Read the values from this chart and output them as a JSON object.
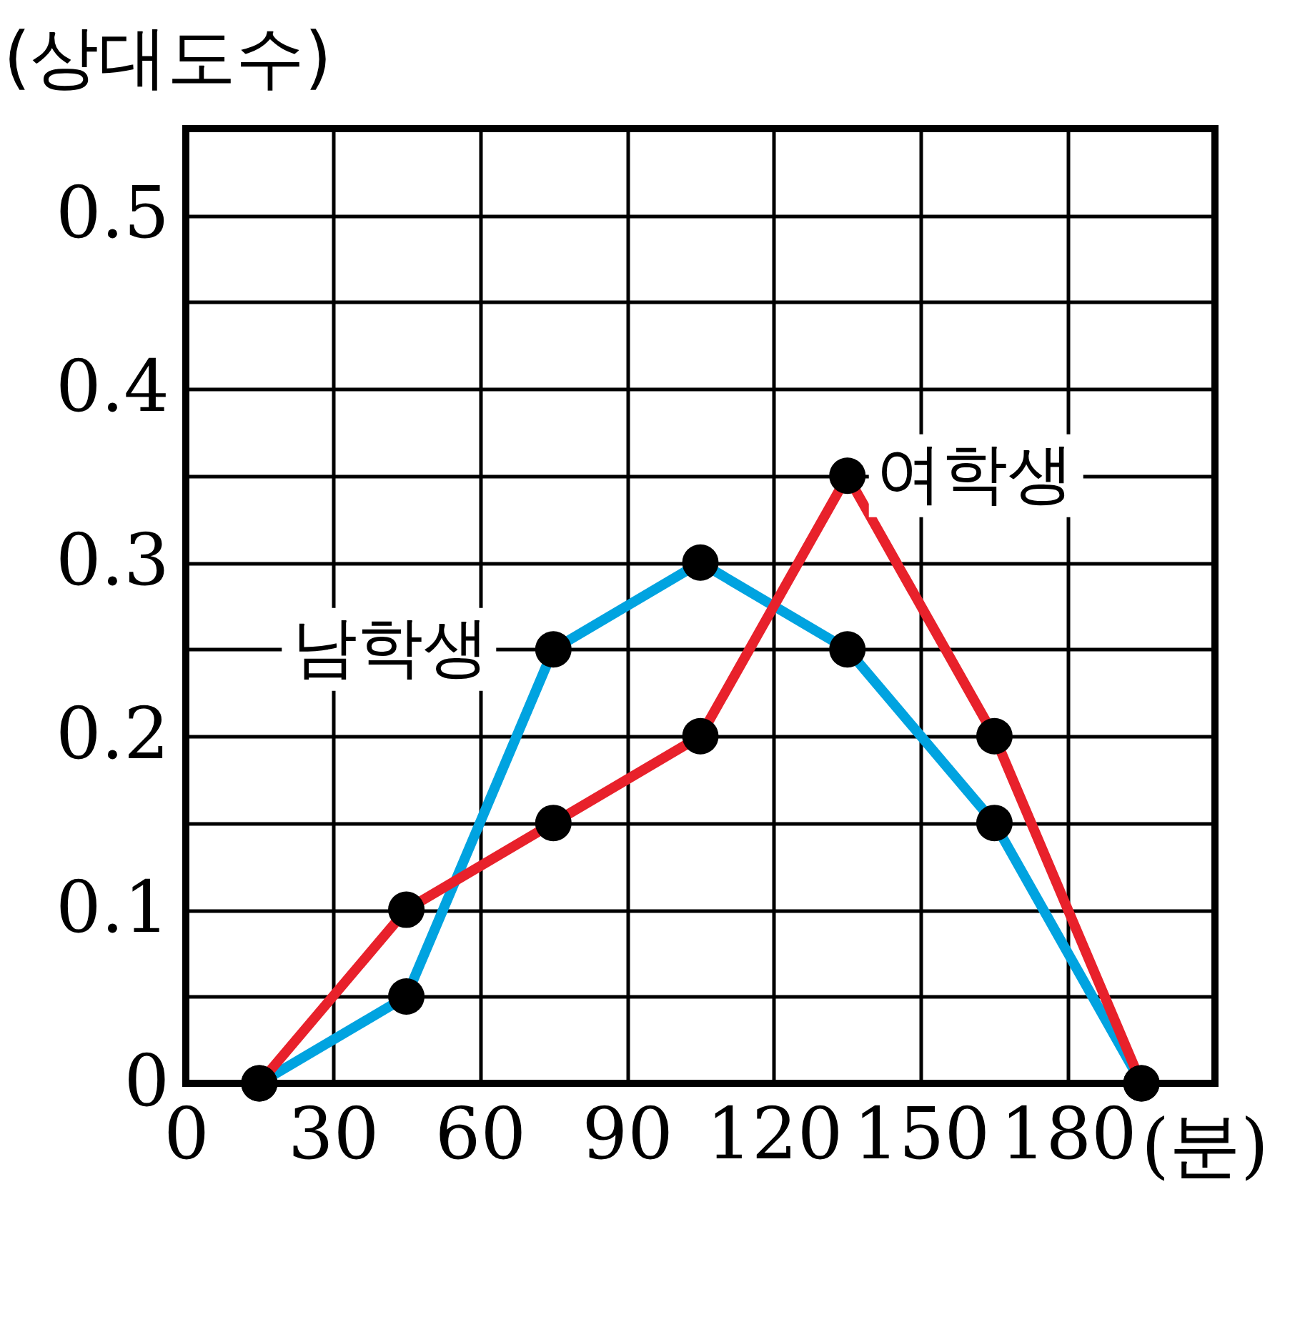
{
  "chart_data": {
    "type": "line",
    "ylabel": "(상대도수)",
    "xlabel": "(분)",
    "x": [
      15,
      45,
      75,
      105,
      135,
      165,
      195
    ],
    "series": [
      {
        "name": "남학생",
        "color": "#00a3e0",
        "values": [
          0,
          0.05,
          0.25,
          0.3,
          0.25,
          0.15,
          0
        ]
      },
      {
        "name": "여학생",
        "color": "#e8212b",
        "values": [
          0,
          0.1,
          0.15,
          0.2,
          0.35,
          0.2,
          0
        ]
      }
    ],
    "xlim": [
      0,
      210
    ],
    "ylim": [
      0,
      0.55
    ],
    "xticks": [
      0,
      30,
      60,
      90,
      120,
      150,
      180
    ],
    "yticks": [
      0,
      {
        "value": 0.05,
        "label": null
      },
      0.1,
      {
        "value": 0.15,
        "label": null
      },
      0.2,
      {
        "value": 0.25,
        "label": null
      },
      0.3,
      {
        "value": 0.35,
        "label": null
      },
      0.4,
      {
        "value": 0.45,
        "label": null
      },
      0.5,
      {
        "value": 0.55,
        "label": null
      }
    ],
    "grid": true,
    "marker": "circle",
    "legend": false
  }
}
